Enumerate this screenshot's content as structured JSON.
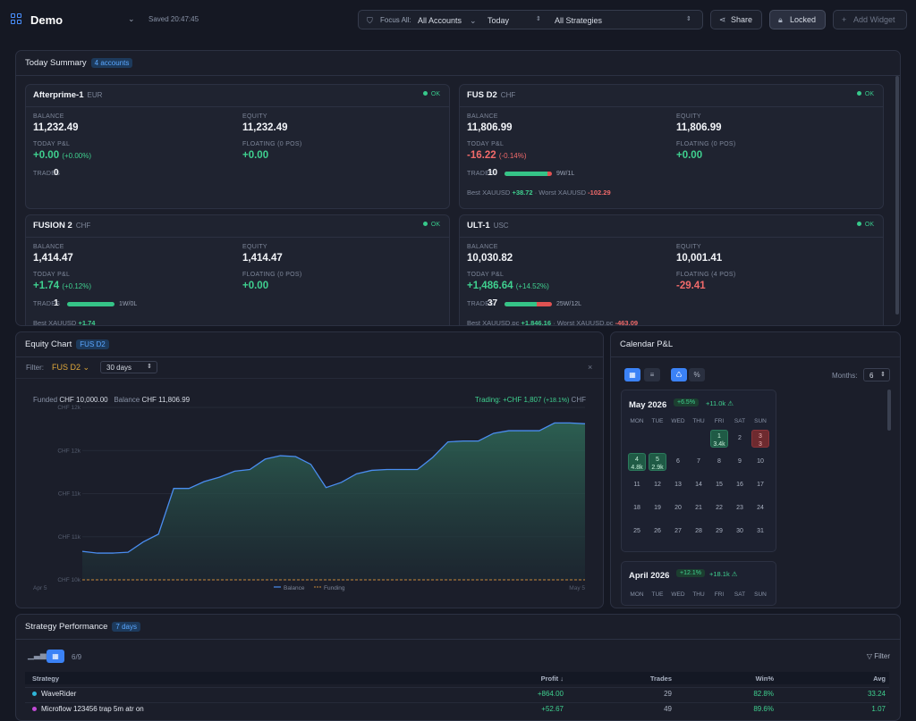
{
  "header": {
    "title": "Demo",
    "saved": "Saved 20:47:45",
    "focus_label": "Focus All:",
    "accounts": "All Accounts",
    "period": "Today",
    "strategies": "All Strategies",
    "share": "Share",
    "locked": "Locked",
    "add_widget": "Add Widget"
  },
  "summary": {
    "title": "Today Summary",
    "badge": "4 accounts",
    "accounts": [
      {
        "name": "Afterprime-1",
        "currency": "EUR",
        "status": "OK",
        "balance": "11,232.49",
        "equity": "11,232.49",
        "pnl": "+0.00",
        "pnl_pct": "(+0.00%)",
        "floating_label": "FLOATING (0 POS)",
        "floating": "+0.00",
        "trades": "0"
      },
      {
        "name": "FUS D2",
        "currency": "CHF",
        "status": "OK",
        "balance": "11,806.99",
        "equity": "11,806.99",
        "pnl": "-16.22",
        "pnl_pct": "(-0.14%)",
        "floating_label": "FLOATING (0 POS)",
        "floating": "+0.00",
        "trades": "10",
        "wl": "9W/1L",
        "win_frac": 0.9,
        "best_label": "Best XAUUSD",
        "best": "+38.72",
        "worst_label": "Worst XAUUSD",
        "worst": "-102.29"
      },
      {
        "name": "FUSION 2",
        "currency": "CHF",
        "status": "OK",
        "balance": "1,414.47",
        "equity": "1,414.47",
        "pnl": "+1.74",
        "pnl_pct": "(+0.12%)",
        "floating_label": "FLOATING (0 POS)",
        "floating": "+0.00",
        "trades": "1",
        "wl": "1W/0L",
        "win_frac": 1.0,
        "best_label": "Best XAUUSD",
        "best": "+1.74"
      },
      {
        "name": "ULT-1",
        "currency": "USC",
        "status": "OK",
        "balance": "10,030.82",
        "equity": "10,001.41",
        "pnl": "+1,486.64",
        "pnl_pct": "(+14.52%)",
        "floating_label": "FLOATING (4 POS)",
        "floating": "-29.41",
        "trades": "37",
        "wl": "25W/12L",
        "win_frac": 0.676,
        "best_label": "Best XAUUSD.pc",
        "best": "+1,846.16",
        "worst_label": "Worst XAUUSD.pc",
        "worst": "-463.09"
      }
    ],
    "labels": {
      "balance": "BALANCE",
      "equity": "EQUITY",
      "pnl": "TODAY P&L",
      "trades": "TRADES"
    }
  },
  "equity": {
    "title": "Equity Chart",
    "badge": "FUS D2",
    "filter_label": "Filter:",
    "filter_value": "FUS D2",
    "range": "30 days",
    "funded_label": "Funded",
    "funded": "CHF 10,000.00",
    "balance_label": "Balance",
    "balance": "CHF 11,806.99",
    "trading": "Trading: +CHF 1,807",
    "trading_pct": "(+18.1%)",
    "trading_cur": "CHF",
    "legend_balance": "Balance",
    "legend_funding": "Funding"
  },
  "chart_data": {
    "type": "area",
    "title": "",
    "x_start": "Apr 5",
    "x_end": "May 5",
    "y_ticks": [
      "CHF 12k",
      "CHF 12k",
      "CHF 11k",
      "CHF 11k",
      "CHF 10k"
    ],
    "ylim": [
      10000,
      12000
    ],
    "series": [
      {
        "name": "Balance",
        "values": [
          10330,
          10310,
          10310,
          10320,
          10440,
          10530,
          11060,
          11060,
          11140,
          11190,
          11260,
          11280,
          11400,
          11440,
          11430,
          11340,
          11070,
          11130,
          11230,
          11270,
          11280,
          11280,
          11280,
          11420,
          11600,
          11610,
          11610,
          11700,
          11730,
          11730,
          11730,
          11820,
          11820,
          11810
        ]
      },
      {
        "name": "Funding",
        "values": [
          10000,
          10000
        ]
      }
    ]
  },
  "calendar": {
    "title": "Calendar P&L",
    "months_label": "Months:",
    "months_value": "6",
    "pct_btn": "%",
    "weekdays": [
      "MON",
      "TUE",
      "WED",
      "THU",
      "FRI",
      "SAT",
      "SUN"
    ],
    "may": {
      "name": "May 2026",
      "pct": "+6.5%",
      "total": "+11.0k ⚠"
    },
    "april": {
      "name": "April 2026",
      "pct": "+12.1%",
      "total": "+18.1k ⚠"
    },
    "days": [
      {
        "d": "1",
        "v": "3.4k",
        "t": "pos"
      },
      {
        "d": "2"
      },
      {
        "d": "3",
        "v": "3",
        "t": "neg"
      },
      {
        "d": "4",
        "v": "4.8k",
        "t": "pos"
      },
      {
        "d": "5",
        "v": "2.9k",
        "t": "pos"
      },
      {
        "d": "6"
      },
      {
        "d": "7"
      },
      {
        "d": "8"
      },
      {
        "d": "9"
      },
      {
        "d": "10"
      },
      {
        "d": "11"
      },
      {
        "d": "12"
      },
      {
        "d": "13"
      },
      {
        "d": "14"
      },
      {
        "d": "15"
      },
      {
        "d": "16"
      },
      {
        "d": "17"
      },
      {
        "d": "18"
      },
      {
        "d": "19"
      },
      {
        "d": "20"
      },
      {
        "d": "21"
      },
      {
        "d": "22"
      },
      {
        "d": "23"
      },
      {
        "d": "24"
      },
      {
        "d": "25"
      },
      {
        "d": "26"
      },
      {
        "d": "27"
      },
      {
        "d": "28"
      },
      {
        "d": "29"
      },
      {
        "d": "30"
      },
      {
        "d": "31"
      }
    ]
  },
  "strategy": {
    "title": "Strategy Performance",
    "badge": "7 days",
    "count": "6/9",
    "filter": "Filter",
    "cols": [
      "Strategy",
      "Profit ↓",
      "Trades",
      "Win%",
      "Avg"
    ],
    "rows": [
      {
        "name": "WaveRider",
        "color": "#2fb6d9",
        "profit": "+864.00",
        "trades": "29",
        "win": "82.8%",
        "avg": "33.24"
      },
      {
        "name": "Microflow 123456 trap 5m atr on",
        "color": "#c24bd6",
        "profit": "+52.67",
        "trades": "49",
        "win": "89.6%",
        "avg": "1.07"
      }
    ]
  }
}
